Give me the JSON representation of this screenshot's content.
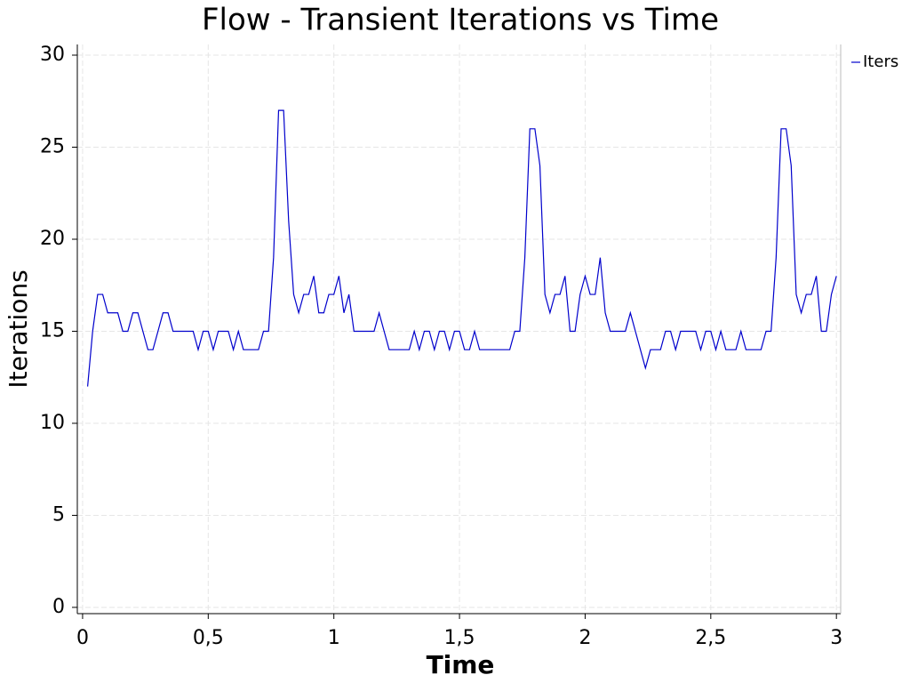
{
  "chart_data": {
    "type": "line",
    "title": "Flow - Transient Iterations vs Time",
    "x_label": "Time",
    "y_label": "Iterations",
    "xlim": [
      -0.021,
      3.017
    ],
    "ylim": [
      -0.34,
      30.58
    ],
    "xticks": [
      0,
      {
        "value": 0.5,
        "label": "0,5"
      },
      1,
      {
        "value": 1.5,
        "label": "1,5"
      },
      2,
      {
        "value": 2.5,
        "label": "2,5"
      },
      3
    ],
    "yticks": [
      0,
      5,
      10,
      15,
      20,
      25,
      30
    ],
    "grid": true,
    "legend": "top-right",
    "x": [
      0.02,
      0.04,
      0.06,
      0.08,
      0.1,
      0.12,
      0.14,
      0.16,
      0.18,
      0.2,
      0.22,
      0.24,
      0.26,
      0.28,
      0.3,
      0.32,
      0.34,
      0.36,
      0.38,
      0.4,
      0.42,
      0.44,
      0.46,
      0.48,
      0.5,
      0.52,
      0.54,
      0.56,
      0.58,
      0.6,
      0.62,
      0.64,
      0.66,
      0.68,
      0.7,
      0.72,
      0.74,
      0.76,
      0.78,
      0.8,
      0.82,
      0.84,
      0.86,
      0.88,
      0.9,
      0.92,
      0.94,
      0.96,
      0.98,
      1.0,
      1.02,
      1.04,
      1.06,
      1.08,
      1.1,
      1.12,
      1.14,
      1.16,
      1.18,
      1.2,
      1.22,
      1.24,
      1.26,
      1.28,
      1.3,
      1.32,
      1.34,
      1.36,
      1.38,
      1.4,
      1.42,
      1.44,
      1.46,
      1.48,
      1.5,
      1.52,
      1.54,
      1.56,
      1.58,
      1.6,
      1.62,
      1.64,
      1.66,
      1.68,
      1.7,
      1.72,
      1.74,
      1.76,
      1.78,
      1.8,
      1.82,
      1.84,
      1.86,
      1.88,
      1.9,
      1.92,
      1.94,
      1.96,
      1.98,
      2.0,
      2.02,
      2.04,
      2.06,
      2.08,
      2.1,
      2.12,
      2.14,
      2.16,
      2.18,
      2.2,
      2.22,
      2.24,
      2.26,
      2.28,
      2.3,
      2.32,
      2.34,
      2.36,
      2.38,
      2.4,
      2.42,
      2.44,
      2.46,
      2.48,
      2.5,
      2.52,
      2.54,
      2.56,
      2.58,
      2.6,
      2.62,
      2.64,
      2.66,
      2.68,
      2.7,
      2.72,
      2.74,
      2.76,
      2.78,
      2.8,
      2.82,
      2.84,
      2.86,
      2.88,
      2.9,
      2.92,
      2.94,
      2.96,
      2.98,
      3.0
    ],
    "series": [
      {
        "name": "Iters",
        "color": "#0000cc",
        "values": [
          12,
          15,
          17,
          17,
          16,
          16,
          16,
          15,
          15,
          16,
          16,
          15,
          14,
          14,
          15,
          16,
          16,
          15,
          15,
          15,
          15,
          15,
          14,
          15,
          15,
          14,
          15,
          15,
          15,
          14,
          15,
          14,
          14,
          14,
          14,
          15,
          15,
          19,
          27,
          27,
          21,
          17,
          16,
          17,
          17,
          18,
          16,
          16,
          17,
          17,
          18,
          16,
          17,
          15,
          15,
          15,
          15,
          15,
          16,
          15,
          14,
          14,
          14,
          14,
          14,
          15,
          14,
          15,
          15,
          14,
          15,
          15,
          14,
          15,
          15,
          14,
          14,
          15,
          14,
          14,
          14,
          14,
          14,
          14,
          14,
          15,
          15,
          19,
          26,
          26,
          24,
          17,
          16,
          17,
          17,
          18,
          15,
          15,
          17,
          18,
          17,
          17,
          19,
          16,
          15,
          15,
          15,
          15,
          16,
          15,
          14,
          13,
          14,
          14,
          14,
          15,
          15,
          14,
          15,
          15,
          15,
          15,
          14,
          15,
          15,
          14,
          15,
          14,
          14,
          14,
          15,
          14,
          14,
          14,
          14,
          15,
          15,
          19,
          26,
          26,
          24,
          17,
          16,
          17,
          17,
          18,
          15,
          15,
          17,
          18
        ]
      }
    ]
  }
}
